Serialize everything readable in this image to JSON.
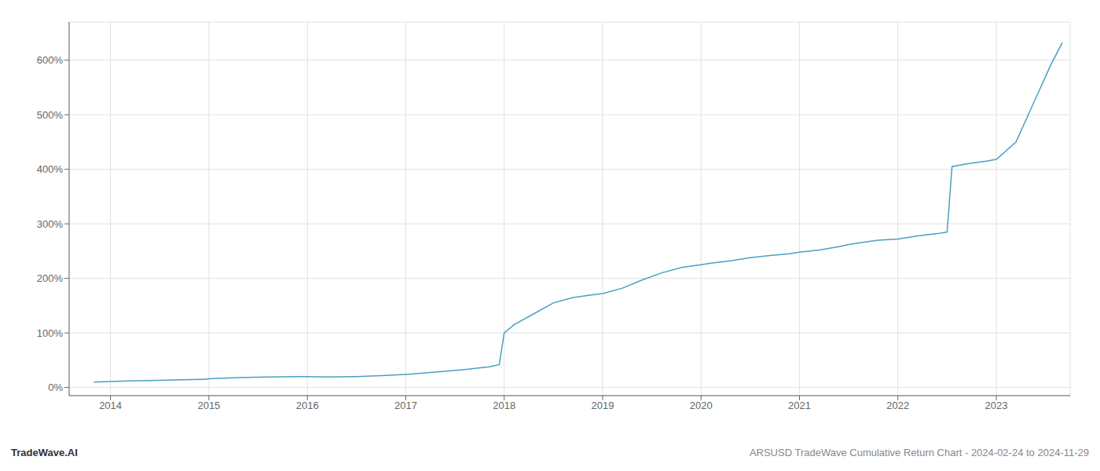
{
  "chart_data": {
    "type": "line",
    "annotations": [
      "TradeWave.AI",
      "ARSUSD TradeWave Cumulative Return Chart - 2024-02-24 to 2024-11-29"
    ],
    "x": [
      2013.83,
      2014.0,
      2014.2,
      2014.5,
      2014.75,
      2014.95,
      2015.0,
      2015.3,
      2015.6,
      2015.9,
      2016.0,
      2016.2,
      2016.5,
      2016.8,
      2017.0,
      2017.3,
      2017.6,
      2017.85,
      2017.95,
      2018.0,
      2018.1,
      2018.3,
      2018.5,
      2018.7,
      2018.9,
      2019.0,
      2019.2,
      2019.4,
      2019.6,
      2019.8,
      2020.0,
      2020.1,
      2020.3,
      2020.5,
      2020.7,
      2020.9,
      2021.0,
      2021.2,
      2021.4,
      2021.5,
      2021.6,
      2021.8,
      2022.0,
      2022.1,
      2022.2,
      2022.4,
      2022.5,
      2022.55,
      2022.7,
      2022.9,
      2023.0,
      2023.2,
      2023.4,
      2023.55,
      2023.67
    ],
    "values": [
      10,
      11,
      12,
      13,
      14,
      15,
      16,
      18,
      19,
      20,
      20,
      19,
      20,
      22,
      24,
      28,
      33,
      38,
      42,
      100,
      115,
      135,
      155,
      165,
      170,
      172,
      182,
      197,
      210,
      220,
      225,
      228,
      232,
      238,
      242,
      245,
      248,
      252,
      258,
      262,
      265,
      270,
      272,
      275,
      278,
      282,
      285,
      405,
      410,
      415,
      418,
      450,
      530,
      590,
      632
    ],
    "color": "#4a9fc4",
    "xlim": [
      2013.58,
      2023.75
    ],
    "xticks": [
      2014,
      2015,
      2016,
      2017,
      2018,
      2019,
      2020,
      2021,
      2022,
      2023
    ],
    "ylim": [
      -15,
      670
    ],
    "yticks": [
      {
        "value": 0,
        "label": "0%"
      },
      {
        "value": 100,
        "label": "100%"
      },
      {
        "value": 200,
        "label": "200%"
      },
      {
        "value": 300,
        "label": "300%"
      },
      {
        "value": 400,
        "label": "400%"
      },
      {
        "value": 500,
        "label": "500%"
      },
      {
        "value": 600,
        "label": "600%"
      }
    ],
    "grid": true
  }
}
